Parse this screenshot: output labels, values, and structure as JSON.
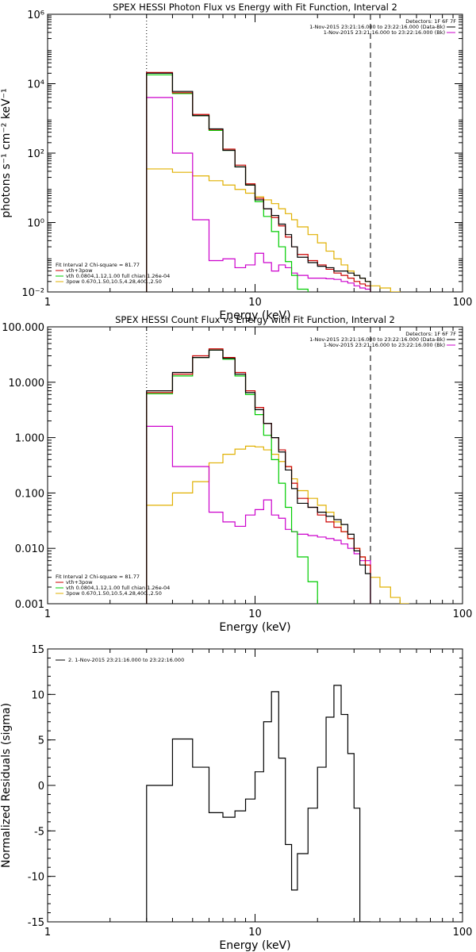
{
  "colors": {
    "background": "#ffffff",
    "axis": "#000000",
    "total": "#000000",
    "model": "#cc0000",
    "vth": "#00cc00",
    "bkg": "#cc00cc",
    "power": "#e0b000"
  },
  "chart_data": [
    {
      "type": "line",
      "title": "SPEX HESSI Photon Flux vs Energy with Fit Function, Interval 2",
      "xlabel": "Energy (keV)",
      "ylabel": "photons s⁻¹ cm⁻² keV⁻¹",
      "xscale": "log",
      "yscale": "log",
      "xlim": [
        1,
        100
      ],
      "ylim": [
        0.01,
        1000000
      ],
      "xticks": [
        {
          "v": 1,
          "label": "1"
        },
        {
          "v": 10,
          "label": "10"
        },
        {
          "v": 100,
          "label": "100"
        }
      ],
      "yticks": [
        {
          "v": 0.01,
          "label": "10⁻²"
        },
        {
          "v": 1,
          "label": "10⁰"
        },
        {
          "v": 100,
          "label": "10²"
        },
        {
          "v": 10000,
          "label": "10⁴"
        },
        {
          "v": 1000000,
          "label": "10⁶"
        }
      ],
      "vlines": [
        {
          "x": 3.0,
          "style": "dotted"
        },
        {
          "x": 36.0,
          "style": "dashed"
        }
      ],
      "legend_top": {
        "heading": "Detectors: 1F 6F 7F",
        "lines": [
          {
            "text": "1-Nov-2015 23:21:16.000 to 23:22:16.000 (Data-Bk)",
            "color": "#000000"
          },
          {
            "text": "1-Nov-2015 23:21:16.000 to 23:22:16.000 (Bk)",
            "color": "#cc00cc"
          }
        ]
      },
      "legend_bottom": {
        "heading": "Fit Interval 2   Chi-square = 81.77",
        "lines": [
          {
            "text": "vth+3pow",
            "color": "#cc0000"
          },
          {
            "text": "vth 0.0804,1.12,1.00  full chian 1.26e-04",
            "color": "#00cc00"
          },
          {
            "text": "3pow 0.670,1.50,10.5,4.28,400.,2.50",
            "color": "#e0b000"
          }
        ]
      },
      "edges": [
        3.0,
        4.0,
        5.0,
        6.0,
        7.0,
        8.0,
        9.0,
        10.0,
        11.0,
        12.0,
        13.0,
        14.0,
        15.0,
        16.0,
        18.0,
        20.0,
        22.0,
        24.0,
        26.0,
        28.0,
        30.0,
        32.0,
        34.0,
        36.0,
        40.0,
        45.0,
        50.0
      ],
      "series": [
        {
          "key": "total",
          "color": "#000000",
          "values": [
            20000,
            6000,
            1200,
            500,
            120,
            40,
            12,
            4.5,
            2.5,
            1.6,
            0.9,
            0.45,
            0.2,
            0.1,
            0.07,
            0.055,
            0.05,
            0.04,
            0.04,
            0.035,
            0.03,
            0.025,
            0.02
          ]
        },
        {
          "key": "model",
          "color": "#cc0000",
          "values": [
            21000,
            5500,
            1300,
            480,
            130,
            45,
            13,
            5,
            2.5,
            1.4,
            0.8,
            0.38,
            0.2,
            0.12,
            0.08,
            0.06,
            0.045,
            0.035,
            0.03,
            0.025,
            0.02,
            0.017,
            0.015
          ]
        },
        {
          "key": "vth",
          "color": "#00cc00",
          "values": [
            18000,
            5200,
            1200,
            450,
            120,
            40,
            12,
            4,
            1.5,
            0.55,
            0.2,
            0.075,
            0.03,
            0.012
          ]
        },
        {
          "key": "bkg",
          "color": "#cc00cc",
          "values": [
            4000,
            100,
            1.2,
            0.08,
            0.09,
            0.05,
            0.06,
            0.13,
            0.07,
            0.04,
            0.06,
            0.05,
            0.035,
            0.03,
            0.025,
            0.025,
            0.024,
            0.023,
            0.02,
            0.018,
            0.015,
            0.013,
            0.012
          ]
        },
        {
          "key": "power",
          "color": "#e0b000",
          "values": [
            35,
            28,
            22,
            16,
            12,
            9,
            7,
            5.5,
            4.5,
            3.5,
            2.5,
            1.8,
            1.2,
            0.75,
            0.45,
            0.26,
            0.15,
            0.09,
            0.06,
            0.04,
            0.03,
            0.025,
            0.02,
            0.015,
            0.013,
            0.01
          ]
        }
      ]
    },
    {
      "type": "line",
      "title": "SPEX HESSI Count Flux vs Energy with Fit Function, Interval 2",
      "xlabel": "Energy (keV)",
      "ylabel": "",
      "xscale": "log",
      "yscale": "log",
      "xlim": [
        1,
        100
      ],
      "ylim": [
        0.001,
        100
      ],
      "xticks": [
        {
          "v": 1,
          "label": "1"
        },
        {
          "v": 10,
          "label": "10"
        },
        {
          "v": 100,
          "label": "100"
        }
      ],
      "yticks": [
        {
          "v": 0.001,
          "label": "0.001"
        },
        {
          "v": 0.01,
          "label": "0.010"
        },
        {
          "v": 0.1,
          "label": "0.100"
        },
        {
          "v": 1,
          "label": "1.000"
        },
        {
          "v": 10,
          "label": "10.000"
        },
        {
          "v": 100,
          "label": "100.000"
        }
      ],
      "vlines": [
        {
          "x": 3.0,
          "style": "dotted"
        },
        {
          "x": 36.0,
          "style": "dashed"
        }
      ],
      "legend_top": {
        "heading": "Detectors: 1F 6F 7F",
        "lines": [
          {
            "text": "1-Nov-2015 23:21:16.000 to 23:22:16.000 (Data-Bk)",
            "color": "#000000"
          },
          {
            "text": "1-Nov-2015 23:21:16.000 to 23:22:16.000 (Bk)",
            "color": "#cc00cc"
          }
        ]
      },
      "legend_bottom": {
        "heading": "Fit Interval 2   Chi-square = 81.77",
        "lines": [
          {
            "text": "vth+3pow",
            "color": "#cc0000"
          },
          {
            "text": "vth 0.0804,1.12,1.00  full chian 1.26e-04",
            "color": "#00cc00"
          },
          {
            "text": "3pow 0.670,1.50,10.5,4.28,400.,2.50",
            "color": "#e0b000"
          }
        ]
      },
      "edges": [
        3.0,
        4.0,
        5.0,
        6.0,
        7.0,
        8.0,
        9.0,
        10.0,
        11.0,
        12.0,
        13.0,
        14.0,
        15.0,
        16.0,
        18.0,
        20.0,
        22.0,
        24.0,
        26.0,
        28.0,
        30.0,
        32.0,
        34.0,
        36.0,
        40.0,
        45.0,
        50.0,
        55.0
      ],
      "series": [
        {
          "key": "total",
          "color": "#000000",
          "values": [
            7,
            15,
            28,
            38,
            27,
            14,
            6.5,
            3.2,
            1.8,
            1,
            0.55,
            0.26,
            0.12,
            0.065,
            0.055,
            0.045,
            0.038,
            0.033,
            0.027,
            0.018,
            0.009,
            0.005,
            0.0035
          ]
        },
        {
          "key": "model",
          "color": "#cc0000",
          "values": [
            6.5,
            14,
            30,
            40,
            28,
            15,
            7,
            3.5,
            1.8,
            1,
            0.6,
            0.3,
            0.15,
            0.08,
            0.055,
            0.04,
            0.03,
            0.024,
            0.02,
            0.015,
            0.01,
            0.007,
            0.005
          ]
        },
        {
          "key": "vth",
          "color": "#00cc00",
          "values": [
            6.2,
            13,
            28,
            38,
            26,
            13,
            6,
            2.6,
            1.1,
            0.4,
            0.15,
            0.055,
            0.02,
            0.007,
            0.0025
          ]
        },
        {
          "key": "bkg",
          "color": "#cc00cc",
          "values": [
            1.6,
            0.3,
            0.3,
            0.045,
            0.03,
            0.025,
            0.04,
            0.05,
            0.075,
            0.04,
            0.035,
            0.022,
            0.02,
            0.018,
            0.017,
            0.016,
            0.015,
            0.014,
            0.012,
            0.01,
            0.008,
            0.006,
            0.006
          ]
        },
        {
          "key": "power",
          "color": "#e0b000",
          "values": [
            0.06,
            0.1,
            0.16,
            0.35,
            0.5,
            0.62,
            0.7,
            0.68,
            0.6,
            0.5,
            0.37,
            0.3,
            0.18,
            0.11,
            0.08,
            0.06,
            0.045,
            0.03,
            0.02,
            0.015,
            0.01,
            0.007,
            0.005,
            0.003,
            0.002,
            0.0013,
            0.001
          ]
        }
      ]
    },
    {
      "type": "line",
      "title": "",
      "xlabel": "Energy (keV)",
      "ylabel": "Normalized Residuals (sigma)",
      "xscale": "log",
      "yscale": "linear",
      "xlim": [
        1,
        100
      ],
      "ylim": [
        -15,
        15
      ],
      "xticks": [
        {
          "v": 1,
          "label": "1"
        },
        {
          "v": 10,
          "label": "10"
        },
        {
          "v": 100,
          "label": "100"
        }
      ],
      "yticks": [
        {
          "v": -15,
          "label": "-15"
        },
        {
          "v": -10,
          "label": "-10"
        },
        {
          "v": -5,
          "label": "-5"
        },
        {
          "v": 0,
          "label": "0"
        },
        {
          "v": 5,
          "label": "5"
        },
        {
          "v": 10,
          "label": "10"
        },
        {
          "v": 15,
          "label": "15"
        }
      ],
      "legend_top": {
        "heading": "",
        "lines": [
          {
            "text": "2.  1-Nov-2015 23:21:16.000 to 23:22:16.000",
            "color": "#000000"
          }
        ]
      },
      "edges": [
        3.0,
        4.0,
        5.0,
        6.0,
        7.0,
        8.0,
        9.0,
        10.0,
        11.0,
        12.0,
        13.0,
        14.0,
        15.0,
        16.0,
        18.0,
        20.0,
        22.0,
        24.0,
        26.0,
        28.0,
        30.0,
        32.0,
        34.0,
        36.0
      ],
      "series": [
        {
          "key": "residuals",
          "color": "#000000",
          "values": [
            0,
            5.1,
            2,
            -3,
            -3.5,
            -2.8,
            -1.5,
            1.5,
            7,
            10.3,
            3,
            -6.5,
            -11.5,
            -7.5,
            -2.5,
            2,
            7.5,
            11,
            7.8,
            3.5,
            -2.5,
            -15,
            -15
          ]
        }
      ]
    }
  ]
}
